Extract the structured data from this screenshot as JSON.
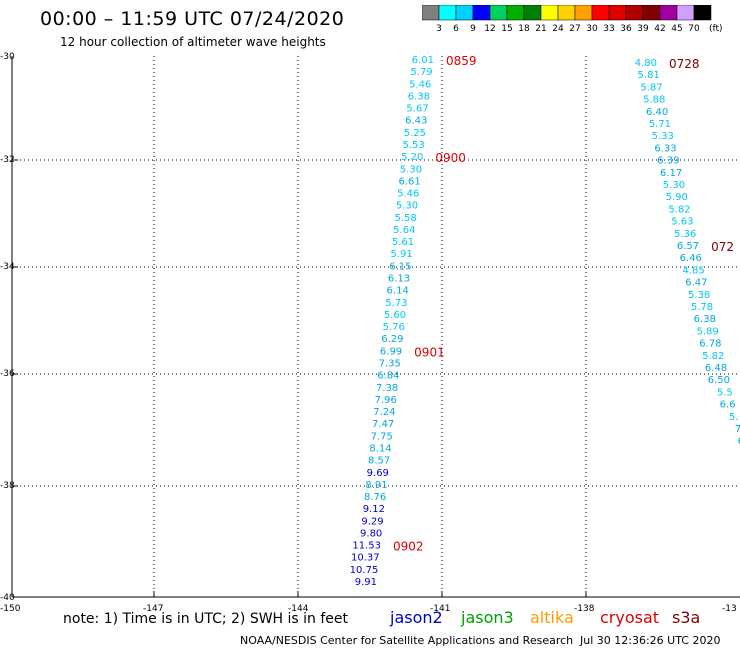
{
  "header": {
    "title": "00:00 – 11:59 UTC 07/24/2020",
    "subtitle": "12 hour collection of altimeter wave heights"
  },
  "colorbar": {
    "labels": [
      "3",
      "6",
      "9",
      "12",
      "15",
      "18",
      "21",
      "24",
      "27",
      "30",
      "33",
      "36",
      "39",
      "42",
      "45",
      "70"
    ],
    "unit": "(ft)",
    "colors": [
      "#808080",
      "#00ffff",
      "#00d0ff",
      "#0000ff",
      "#00d060",
      "#00b000",
      "#008000",
      "#ffff00",
      "#ffd000",
      "#ffa000",
      "#ff0000",
      "#e00000",
      "#b00000",
      "#800000",
      "#a000a0",
      "#d0a0ff",
      "#000000"
    ]
  },
  "axes": {
    "lat_labels": [
      "-30",
      "-32",
      "-34",
      "-36",
      "-38",
      "-40"
    ],
    "lon_labels": [
      "-150",
      "-147",
      "-144",
      "-141",
      "-138",
      "-13"
    ]
  },
  "tracks": [
    {
      "label": "0859",
      "label_color": "#dd0000",
      "points": [
        {
          "v": "6.01",
          "c": "#00c8f0"
        },
        {
          "v": "5.79",
          "c": "#00c8f0"
        },
        {
          "v": "5.46",
          "c": "#00c8f0"
        },
        {
          "v": "6.38",
          "c": "#00c8f0"
        },
        {
          "v": "5.67",
          "c": "#00c8f0"
        },
        {
          "v": "6.43",
          "c": "#00a8d8"
        },
        {
          "v": "5.25",
          "c": "#00c8f0"
        },
        {
          "v": "5.53",
          "c": "#00c8f0"
        },
        {
          "v": "5.20",
          "c": "#00c8f0"
        },
        {
          "v": "5.30",
          "c": "#00c8f0"
        },
        {
          "v": "6.61",
          "c": "#00a8d8"
        },
        {
          "v": "5.46",
          "c": "#00c8f0"
        },
        {
          "v": "5.30",
          "c": "#00c8f0"
        },
        {
          "v": "5.58",
          "c": "#00c8f0"
        },
        {
          "v": "5.64",
          "c": "#00c8f0"
        },
        {
          "v": "5.61",
          "c": "#00c8f0"
        },
        {
          "v": "5.91",
          "c": "#00c8f0"
        },
        {
          "v": "6.15",
          "c": "#00a8d8"
        },
        {
          "v": "6.13",
          "c": "#00a8d8"
        },
        {
          "v": "6.14",
          "c": "#00a8d8"
        },
        {
          "v": "5.73",
          "c": "#00c8f0"
        },
        {
          "v": "5.60",
          "c": "#00c8f0"
        },
        {
          "v": "5.76",
          "c": "#00c8f0"
        },
        {
          "v": "6.29",
          "c": "#00a8d8"
        },
        {
          "v": "6.99",
          "c": "#00a8d8"
        },
        {
          "v": "7.35",
          "c": "#00a8d8"
        },
        {
          "v": "6.84",
          "c": "#00a8d8"
        },
        {
          "v": "7.38",
          "c": "#00a8d8"
        },
        {
          "v": "7.96",
          "c": "#00a8d8"
        },
        {
          "v": "7.24",
          "c": "#00a8d8"
        },
        {
          "v": "7.47",
          "c": "#00a8d8"
        },
        {
          "v": "7.75",
          "c": "#00a8d8"
        },
        {
          "v": "8.14",
          "c": "#00a8d8"
        },
        {
          "v": "8.57",
          "c": "#00a8d8"
        },
        {
          "v": "9.69",
          "c": "#0000cc"
        },
        {
          "v": "8.91",
          "c": "#00a8d8"
        },
        {
          "v": "8.76",
          "c": "#00a8d8"
        },
        {
          "v": "9.12",
          "c": "#0000cc"
        },
        {
          "v": "9.29",
          "c": "#0000cc"
        },
        {
          "v": "9.80",
          "c": "#0000cc"
        },
        {
          "v": "11.53",
          "c": "#0000cc"
        },
        {
          "v": "10.37",
          "c": "#0000cc"
        },
        {
          "v": "10.75",
          "c": "#0000cc"
        },
        {
          "v": "9.91",
          "c": "#0000cc"
        }
      ],
      "markers": [
        {
          "label": "0859",
          "index": 0
        },
        {
          "label": "0900",
          "index": 8
        },
        {
          "label": "0901",
          "index": 24
        },
        {
          "label": "0902",
          "index": 40
        }
      ]
    },
    {
      "label": "0728",
      "label_color": "#800000",
      "points": [
        {
          "v": "4.80",
          "c": "#00c8f0"
        },
        {
          "v": "5.81",
          "c": "#00c8f0"
        },
        {
          "v": "5.87",
          "c": "#00c8f0"
        },
        {
          "v": "5.88",
          "c": "#00c8f0"
        },
        {
          "v": "6.40",
          "c": "#00a8d8"
        },
        {
          "v": "5.71",
          "c": "#00c8f0"
        },
        {
          "v": "5.33",
          "c": "#00c8f0"
        },
        {
          "v": "6.33",
          "c": "#00a8d8"
        },
        {
          "v": "6.39",
          "c": "#00a8d8"
        },
        {
          "v": "6.17",
          "c": "#00a8d8"
        },
        {
          "v": "5.30",
          "c": "#00c8f0"
        },
        {
          "v": "5.90",
          "c": "#00c8f0"
        },
        {
          "v": "5.82",
          "c": "#00c8f0"
        },
        {
          "v": "5.63",
          "c": "#00c8f0"
        },
        {
          "v": "5.36",
          "c": "#00c8f0"
        },
        {
          "v": "6.57",
          "c": "#00a8d8"
        },
        {
          "v": "6.46",
          "c": "#00a8d8"
        },
        {
          "v": "4.85",
          "c": "#00c8f0"
        },
        {
          "v": "6.47",
          "c": "#00a8d8"
        },
        {
          "v": "5.38",
          "c": "#00c8f0"
        },
        {
          "v": "5.78",
          "c": "#00c8f0"
        },
        {
          "v": "6.38",
          "c": "#00a8d8"
        },
        {
          "v": "5.89",
          "c": "#00c8f0"
        },
        {
          "v": "6.78",
          "c": "#00a8d8"
        },
        {
          "v": "5.82",
          "c": "#00c8f0"
        },
        {
          "v": "6.48",
          "c": "#00a8d8"
        },
        {
          "v": "6.50",
          "c": "#00a8d8"
        },
        {
          "v": "5.5",
          "c": "#00c8f0"
        },
        {
          "v": "6.6",
          "c": "#00a8d8"
        },
        {
          "v": "5.",
          "c": "#00c8f0"
        },
        {
          "v": "7",
          "c": "#00a8d8"
        },
        {
          "v": "6",
          "c": "#00a8d8"
        }
      ],
      "markers": [
        {
          "label": "0728",
          "index": 0
        },
        {
          "label": "072",
          "index": 15
        }
      ]
    }
  ],
  "footer": {
    "note": "note: 1) Time is in UTC; 2) SWH is in feet",
    "missions": [
      {
        "name": "jason2",
        "color": "#0000cc"
      },
      {
        "name": "jason3",
        "color": "#00a000"
      },
      {
        "name": "altika",
        "color": "#ff9900"
      },
      {
        "name": "cryosat",
        "color": "#dd0000"
      },
      {
        "name": "s3a",
        "color": "#800000"
      }
    ],
    "credit": "NOAA/NESDIS Center for Satellite Applications and Research",
    "timestamp": "Jul 30 12:36:26 UTC 2020"
  }
}
